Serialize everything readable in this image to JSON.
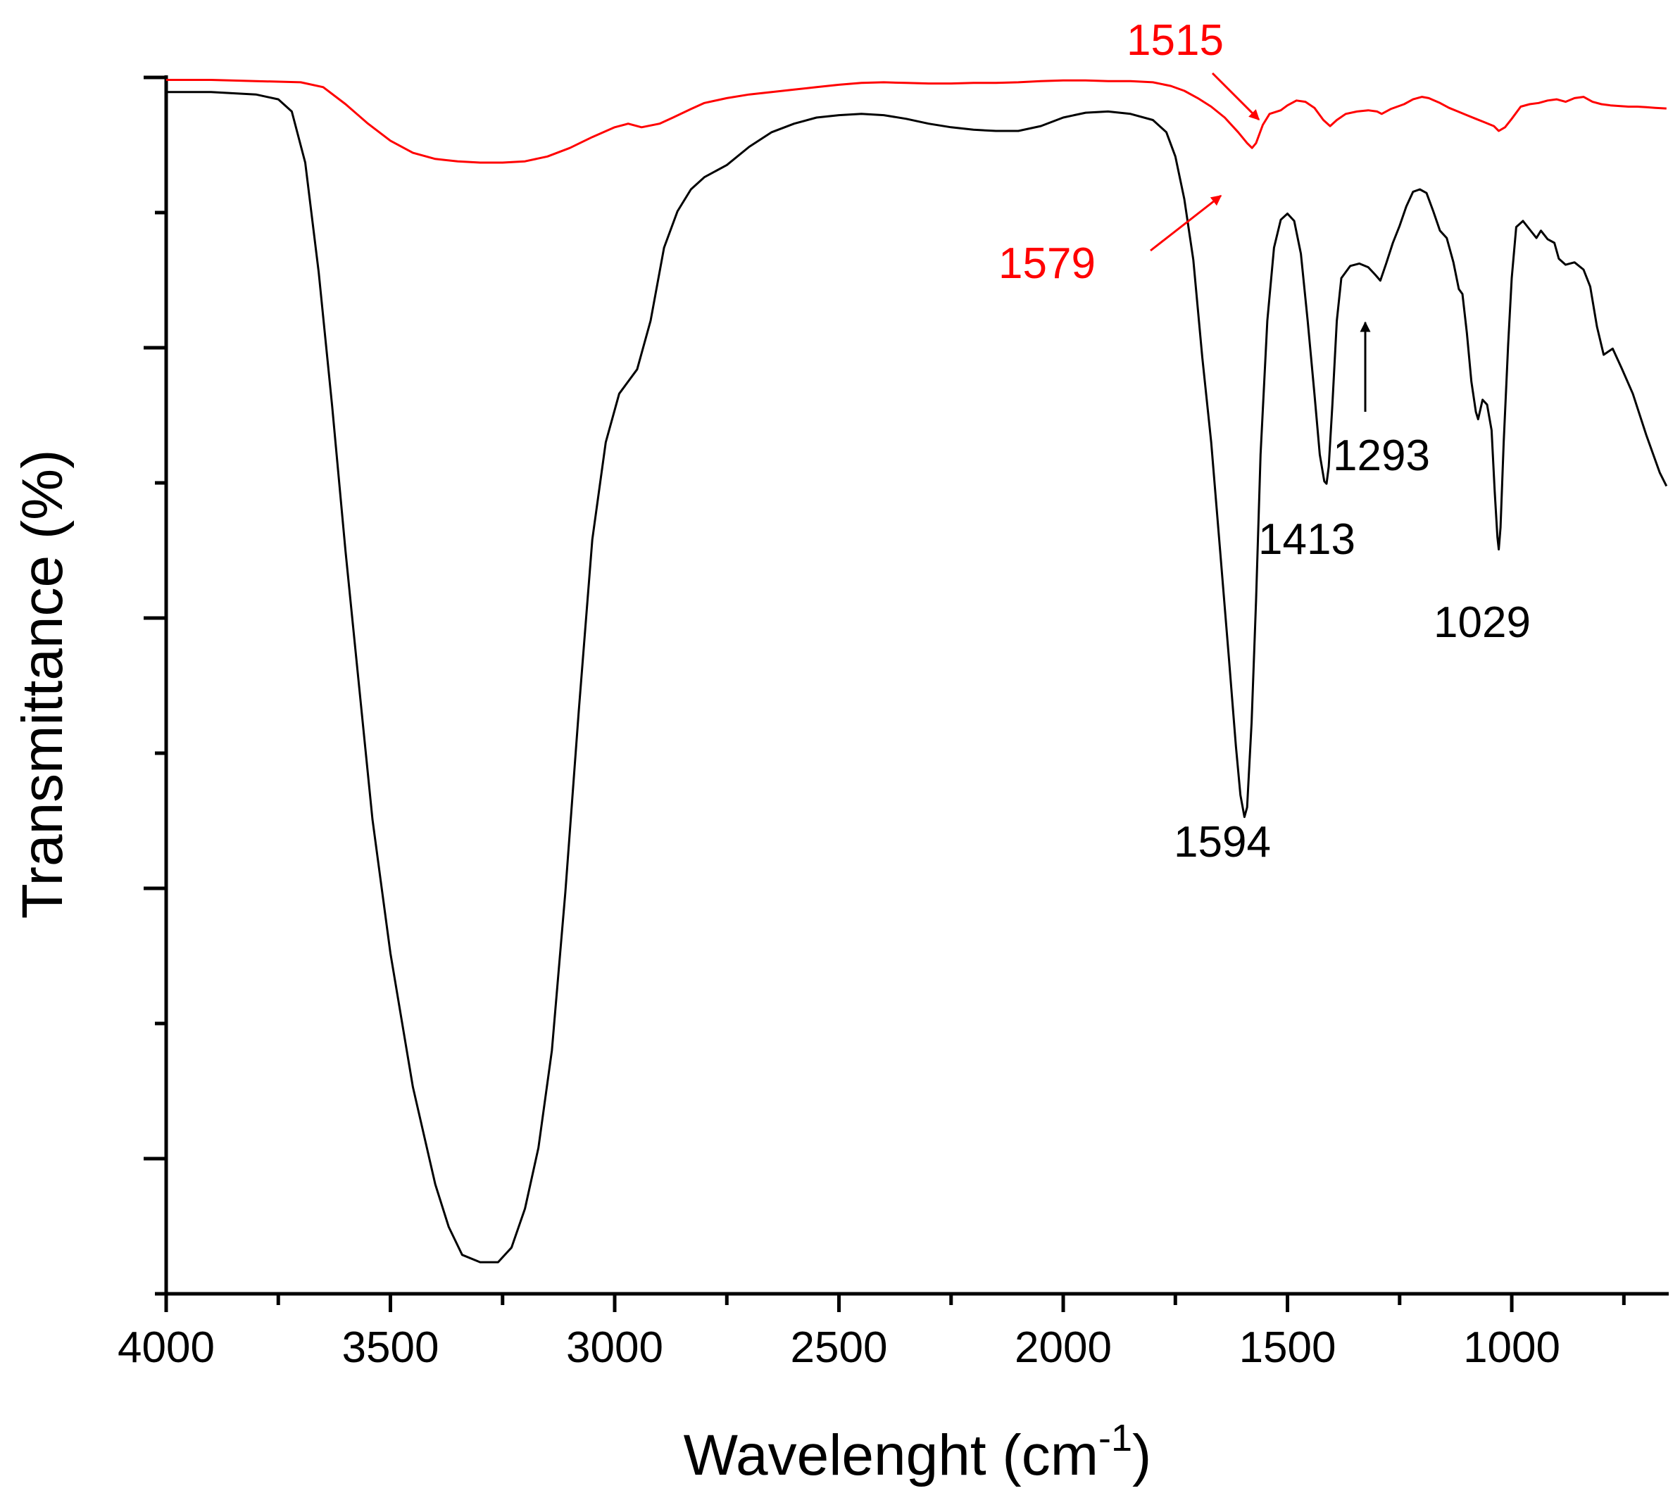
{
  "chart_data": {
    "type": "line",
    "title": "",
    "xlabel": "Wavelenght (cm",
    "xlabel_sup": "-1",
    "xlabel_end": ")",
    "ylabel": "Transmittance (%)",
    "xlim": [
      4000,
      650
    ],
    "x_reversed": true,
    "ylim": [
      0,
      100
    ],
    "y_tick_labels_shown": false,
    "grid": false,
    "legend": "none",
    "x_ticks": [
      4000,
      3500,
      3000,
      2500,
      2000,
      1500,
      1000
    ],
    "x_tick_labels": [
      "4000",
      "3500",
      "3000",
      "2500",
      "2000",
      "1500",
      "1000"
    ],
    "series": [
      {
        "color": "#000000",
        "points": [
          [
            4000,
            98.8
          ],
          [
            3900,
            98.8
          ],
          [
            3800,
            98.6
          ],
          [
            3750,
            98.2
          ],
          [
            3720,
            97.2
          ],
          [
            3690,
            93
          ],
          [
            3660,
            84
          ],
          [
            3630,
            73
          ],
          [
            3600,
            61
          ],
          [
            3570,
            50
          ],
          [
            3540,
            39
          ],
          [
            3500,
            28
          ],
          [
            3450,
            17
          ],
          [
            3400,
            9
          ],
          [
            3370,
            5.5
          ],
          [
            3340,
            3.2
          ],
          [
            3300,
            2.6
          ],
          [
            3260,
            2.6
          ],
          [
            3230,
            3.8
          ],
          [
            3200,
            7
          ],
          [
            3170,
            12
          ],
          [
            3140,
            20
          ],
          [
            3110,
            33
          ],
          [
            3080,
            48
          ],
          [
            3050,
            62
          ],
          [
            3020,
            70
          ],
          [
            2990,
            74
          ],
          [
            2950,
            76
          ],
          [
            2920,
            80
          ],
          [
            2890,
            86
          ],
          [
            2860,
            89
          ],
          [
            2830,
            90.8
          ],
          [
            2800,
            91.8
          ],
          [
            2750,
            92.8
          ],
          [
            2700,
            94.3
          ],
          [
            2650,
            95.5
          ],
          [
            2600,
            96.2
          ],
          [
            2550,
            96.7
          ],
          [
            2500,
            96.9
          ],
          [
            2450,
            97.0
          ],
          [
            2400,
            96.9
          ],
          [
            2350,
            96.6
          ],
          [
            2300,
            96.2
          ],
          [
            2250,
            95.9
          ],
          [
            2200,
            95.7
          ],
          [
            2150,
            95.6
          ],
          [
            2100,
            95.6
          ],
          [
            2050,
            96.0
          ],
          [
            2000,
            96.7
          ],
          [
            1950,
            97.1
          ],
          [
            1900,
            97.2
          ],
          [
            1850,
            97.0
          ],
          [
            1800,
            96.5
          ],
          [
            1770,
            95.5
          ],
          [
            1750,
            93.5
          ],
          [
            1730,
            90
          ],
          [
            1710,
            85
          ],
          [
            1690,
            77
          ],
          [
            1670,
            70
          ],
          [
            1650,
            61
          ],
          [
            1630,
            52
          ],
          [
            1615,
            45
          ],
          [
            1605,
            41
          ],
          [
            1596,
            39.2
          ],
          [
            1590,
            40
          ],
          [
            1580,
            47
          ],
          [
            1570,
            57
          ],
          [
            1560,
            69
          ],
          [
            1545,
            80
          ],
          [
            1530,
            86
          ],
          [
            1515,
            88.3
          ],
          [
            1500,
            88.8
          ],
          [
            1485,
            88.2
          ],
          [
            1470,
            85.5
          ],
          [
            1455,
            80
          ],
          [
            1440,
            74
          ],
          [
            1428,
            69
          ],
          [
            1418,
            66.8
          ],
          [
            1413,
            66.6
          ],
          [
            1408,
            68
          ],
          [
            1400,
            73
          ],
          [
            1390,
            80
          ],
          [
            1380,
            83.5
          ],
          [
            1360,
            84.5
          ],
          [
            1340,
            84.7
          ],
          [
            1320,
            84.4
          ],
          [
            1305,
            83.8
          ],
          [
            1293,
            83.3
          ],
          [
            1280,
            84.7
          ],
          [
            1265,
            86.4
          ],
          [
            1250,
            87.8
          ],
          [
            1235,
            89.4
          ],
          [
            1220,
            90.6
          ],
          [
            1205,
            90.8
          ],
          [
            1190,
            90.5
          ],
          [
            1175,
            89
          ],
          [
            1160,
            87.4
          ],
          [
            1145,
            86.8
          ],
          [
            1130,
            84.8
          ],
          [
            1118,
            82.6
          ],
          [
            1110,
            82.2
          ],
          [
            1100,
            79
          ],
          [
            1090,
            75
          ],
          [
            1080,
            72.5
          ],
          [
            1075,
            71.9
          ],
          [
            1065,
            73.5
          ],
          [
            1055,
            73.1
          ],
          [
            1045,
            71
          ],
          [
            1038,
            66
          ],
          [
            1032,
            62.2
          ],
          [
            1029,
            61.2
          ],
          [
            1025,
            63
          ],
          [
            1018,
            70
          ],
          [
            1008,
            78
          ],
          [
            1000,
            83.5
          ],
          [
            990,
            87.7
          ],
          [
            975,
            88.2
          ],
          [
            960,
            87.5
          ],
          [
            945,
            86.8
          ],
          [
            935,
            87.4
          ],
          [
            920,
            86.7
          ],
          [
            905,
            86.4
          ],
          [
            895,
            85.1
          ],
          [
            880,
            84.6
          ],
          [
            860,
            84.8
          ],
          [
            840,
            84.2
          ],
          [
            825,
            82.8
          ],
          [
            810,
            79.5
          ],
          [
            795,
            77.2
          ],
          [
            775,
            77.7
          ],
          [
            755,
            76.1
          ],
          [
            730,
            74
          ],
          [
            700,
            70.6
          ],
          [
            670,
            67.5
          ],
          [
            655,
            66.4
          ]
        ]
      },
      {
        "color": "#ff0000",
        "points": [
          [
            4000,
            99.8
          ],
          [
            3900,
            99.8
          ],
          [
            3800,
            99.7
          ],
          [
            3700,
            99.6
          ],
          [
            3650,
            99.2
          ],
          [
            3600,
            97.8
          ],
          [
            3550,
            96.2
          ],
          [
            3500,
            94.8
          ],
          [
            3450,
            93.8
          ],
          [
            3400,
            93.3
          ],
          [
            3350,
            93.1
          ],
          [
            3300,
            93.0
          ],
          [
            3250,
            93.0
          ],
          [
            3200,
            93.1
          ],
          [
            3150,
            93.5
          ],
          [
            3100,
            94.2
          ],
          [
            3050,
            95.1
          ],
          [
            3000,
            95.9
          ],
          [
            2970,
            96.2
          ],
          [
            2940,
            95.9
          ],
          [
            2900,
            96.2
          ],
          [
            2870,
            96.7
          ],
          [
            2830,
            97.4
          ],
          [
            2800,
            97.9
          ],
          [
            2750,
            98.3
          ],
          [
            2700,
            98.6
          ],
          [
            2650,
            98.8
          ],
          [
            2600,
            99.0
          ],
          [
            2550,
            99.2
          ],
          [
            2500,
            99.4
          ],
          [
            2450,
            99.55
          ],
          [
            2400,
            99.6
          ],
          [
            2350,
            99.55
          ],
          [
            2300,
            99.5
          ],
          [
            2250,
            99.5
          ],
          [
            2200,
            99.55
          ],
          [
            2150,
            99.55
          ],
          [
            2100,
            99.6
          ],
          [
            2050,
            99.7
          ],
          [
            2000,
            99.75
          ],
          [
            1950,
            99.75
          ],
          [
            1900,
            99.7
          ],
          [
            1850,
            99.7
          ],
          [
            1800,
            99.6
          ],
          [
            1760,
            99.3
          ],
          [
            1730,
            98.9
          ],
          [
            1700,
            98.3
          ],
          [
            1670,
            97.6
          ],
          [
            1640,
            96.7
          ],
          [
            1610,
            95.5
          ],
          [
            1590,
            94.6
          ],
          [
            1579,
            94.2
          ],
          [
            1570,
            94.6
          ],
          [
            1555,
            96.1
          ],
          [
            1540,
            97.0
          ],
          [
            1515,
            97.3
          ],
          [
            1500,
            97.7
          ],
          [
            1480,
            98.1
          ],
          [
            1460,
            98.0
          ],
          [
            1440,
            97.5
          ],
          [
            1420,
            96.5
          ],
          [
            1405,
            96.0
          ],
          [
            1390,
            96.5
          ],
          [
            1370,
            97.0
          ],
          [
            1345,
            97.2
          ],
          [
            1320,
            97.3
          ],
          [
            1300,
            97.2
          ],
          [
            1290,
            97.0
          ],
          [
            1270,
            97.4
          ],
          [
            1240,
            97.8
          ],
          [
            1220,
            98.2
          ],
          [
            1200,
            98.4
          ],
          [
            1185,
            98.3
          ],
          [
            1160,
            97.9
          ],
          [
            1140,
            97.5
          ],
          [
            1120,
            97.2
          ],
          [
            1100,
            96.9
          ],
          [
            1080,
            96.6
          ],
          [
            1060,
            96.3
          ],
          [
            1040,
            96.0
          ],
          [
            1029,
            95.6
          ],
          [
            1015,
            95.9
          ],
          [
            1000,
            96.6
          ],
          [
            980,
            97.6
          ],
          [
            960,
            97.8
          ],
          [
            940,
            97.9
          ],
          [
            920,
            98.1
          ],
          [
            900,
            98.2
          ],
          [
            880,
            98.0
          ],
          [
            860,
            98.3
          ],
          [
            840,
            98.4
          ],
          [
            820,
            98.0
          ],
          [
            800,
            97.8
          ],
          [
            780,
            97.7
          ],
          [
            760,
            97.65
          ],
          [
            740,
            97.6
          ],
          [
            720,
            97.6
          ],
          [
            700,
            97.55
          ],
          [
            680,
            97.5
          ],
          [
            655,
            97.45
          ]
        ]
      }
    ],
    "annotations": [
      {
        "text": "1515",
        "color": "#ff0000",
        "arrow": true
      },
      {
        "text": "1579",
        "color": "#ff0000",
        "arrow": true
      },
      {
        "text": "1594",
        "color": "#000000",
        "arrow": false
      },
      {
        "text": "1413",
        "color": "#000000",
        "arrow": false
      },
      {
        "text": "1293",
        "color": "#000000",
        "arrow": true
      },
      {
        "text": "1029",
        "color": "#000000",
        "arrow": false
      }
    ]
  }
}
